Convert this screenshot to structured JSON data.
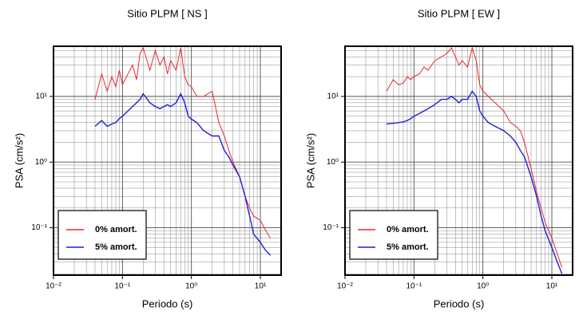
{
  "chart_data": [
    {
      "type": "line",
      "title": "Sitio PLPM [ NS ]",
      "xlabel": "Periodo (s)",
      "ylabel": "PSA (cm/s²)",
      "x": [
        0.04,
        0.05,
        0.06,
        0.07,
        0.08,
        0.09,
        0.1,
        0.12,
        0.14,
        0.16,
        0.18,
        0.2,
        0.25,
        0.3,
        0.35,
        0.4,
        0.45,
        0.5,
        0.6,
        0.7,
        0.8,
        0.9,
        1,
        1.2,
        1.5,
        2,
        2.5,
        3,
        3.5,
        4,
        5,
        6,
        7,
        8,
        10,
        12,
        14
      ],
      "series": [
        {
          "name": "0% amort.",
          "color": "#e8272a",
          "values": [
            9,
            22,
            12,
            20,
            14,
            25,
            15,
            22,
            30,
            18,
            45,
            55,
            25,
            50,
            30,
            40,
            22,
            35,
            25,
            55,
            20,
            15,
            14,
            10,
            10,
            12,
            4,
            2.5,
            1.5,
            1.0,
            0.6,
            0.3,
            0.2,
            0.15,
            0.13,
            0.09,
            0.07
          ]
        },
        {
          "name": "5% amort.",
          "color": "#1f1fd6",
          "values": [
            3.5,
            4.3,
            3.5,
            3.8,
            4,
            4.6,
            5,
            6,
            7,
            8,
            9,
            11,
            8,
            7,
            6.5,
            7,
            7.5,
            7,
            8,
            11,
            8,
            5,
            4.5,
            4,
            3,
            2.5,
            2.5,
            1.5,
            1.2,
            0.9,
            0.6,
            0.3,
            0.15,
            0.08,
            0.06,
            0.045,
            0.038
          ]
        }
      ],
      "xlim": [
        0.01,
        20
      ],
      "ylim": [
        0.019,
        58
      ],
      "log_x": true,
      "log_y": true,
      "grid": true,
      "legend": "lower left",
      "xticks": [
        {
          "value": 0.01,
          "label": "10⁻²"
        },
        {
          "value": 0.1,
          "label": "10⁻¹"
        },
        {
          "value": 1,
          "label": "10⁰"
        },
        {
          "value": 10,
          "label": "10¹"
        }
      ],
      "yticks": [
        {
          "value": 0.1,
          "label": "10⁻¹"
        },
        {
          "value": 1,
          "label": "10⁰"
        },
        {
          "value": 10,
          "label": "10¹"
        }
      ]
    },
    {
      "type": "line",
      "title": "Sitio PLPM [ EW ]",
      "xlabel": "Periodo (s)",
      "ylabel": "PSA (cm/s²)",
      "x": [
        0.04,
        0.05,
        0.06,
        0.07,
        0.08,
        0.09,
        0.1,
        0.12,
        0.14,
        0.16,
        0.18,
        0.2,
        0.25,
        0.3,
        0.35,
        0.4,
        0.45,
        0.5,
        0.6,
        0.7,
        0.8,
        0.9,
        1,
        1.2,
        1.5,
        2,
        2.5,
        3,
        3.5,
        4,
        5,
        6,
        7,
        8,
        10,
        12,
        14
      ],
      "series": [
        {
          "name": "0% amort.",
          "color": "#e8272a",
          "values": [
            12,
            18,
            15,
            16,
            20,
            18,
            20,
            22,
            28,
            25,
            30,
            35,
            40,
            45,
            55,
            40,
            30,
            35,
            28,
            55,
            35,
            15,
            12,
            10,
            8,
            6,
            4,
            3.5,
            3,
            2,
            0.8,
            0.35,
            0.2,
            0.12,
            0.07,
            0.04,
            0.025
          ]
        },
        {
          "name": "5% amort.",
          "color": "#1f1fd6",
          "values": [
            3.8,
            3.9,
            4,
            4.1,
            4.3,
            4.6,
            5,
            5.5,
            6,
            6.5,
            7,
            7.5,
            9,
            9,
            10,
            9,
            8,
            9,
            9,
            12,
            10,
            6,
            5,
            4,
            3.5,
            3,
            2.5,
            2,
            1.5,
            1.2,
            0.6,
            0.3,
            0.15,
            0.09,
            0.05,
            0.03,
            0.02
          ]
        }
      ],
      "xlim": [
        0.01,
        20
      ],
      "ylim": [
        0.019,
        58
      ],
      "log_x": true,
      "log_y": true,
      "grid": true,
      "legend": "lower left",
      "xticks": [
        {
          "value": 0.01,
          "label": "10⁻²"
        },
        {
          "value": 0.1,
          "label": "10⁻¹"
        },
        {
          "value": 1,
          "label": "10⁰"
        },
        {
          "value": 10,
          "label": "10¹"
        }
      ],
      "yticks": [
        {
          "value": 0.1,
          "label": "10⁻¹"
        },
        {
          "value": 1,
          "label": "10⁰"
        },
        {
          "value": 10,
          "label": "10¹"
        }
      ]
    }
  ]
}
